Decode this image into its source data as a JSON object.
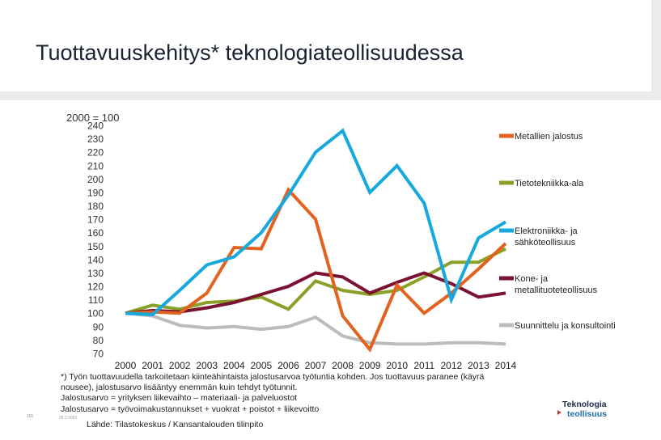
{
  "header": {
    "title": "Tuottavuuskehitys* teknologiateollisuudessa"
  },
  "chart_data": {
    "type": "line",
    "subtitle": "2000 = 100",
    "x": [
      "2000",
      "2001",
      "2002",
      "2003",
      "2004",
      "2005",
      "2006",
      "2007",
      "2008",
      "2009",
      "2010",
      "2011",
      "2012",
      "2013",
      "2014"
    ],
    "y_ticks": [
      70,
      80,
      90,
      100,
      110,
      120,
      130,
      140,
      150,
      160,
      170,
      180,
      190,
      200,
      210,
      220,
      230,
      240
    ],
    "ylim": [
      70,
      240
    ],
    "series": [
      {
        "name": "Metallien jalostus",
        "color": "#e2621f",
        "values": [
          100,
          101,
          100,
          115,
          149,
          148,
          192,
          170,
          98,
          73,
          121,
          100,
          115,
          133,
          152
        ]
      },
      {
        "name": "Tietotekniikka-ala",
        "color": "#8aa128",
        "values": [
          100,
          106,
          103,
          108,
          109,
          112,
          103,
          124,
          117,
          114,
          117,
          127,
          138,
          138,
          148
        ]
      },
      {
        "name": "Elektroniikka- ja sähköteollisuus",
        "color": "#17a9de",
        "values": [
          100,
          99,
          117,
          136,
          142,
          160,
          188,
          220,
          236,
          190,
          210,
          182,
          110,
          156,
          168
        ]
      },
      {
        "name": "Kone- ja metallituoteteollisuus",
        "color": "#7a1232",
        "values": [
          100,
          102,
          101,
          104,
          108,
          114,
          120,
          130,
          127,
          115,
          123,
          130,
          122,
          112,
          115
        ]
      },
      {
        "name": "Suunnittelu ja konsultointi",
        "color": "#bcbcbc",
        "values": [
          100,
          98,
          91,
          89,
          90,
          88,
          90,
          97,
          83,
          78,
          77,
          77,
          78,
          78,
          77
        ]
      }
    ]
  },
  "footnote": {
    "line1": "*) Työn tuottavuudella tarkoitetaan kiinteähintaista jalostusarvoa työtuntia kohden. Jos tuottavuus paranee (käyrä",
    "line2": "nousee), jalostusarvo lisääntyy enemmän kuin tehdyt työtunnit.",
    "line3": "Jalostusarvo = yrityksen liikevaihto – materiaali- ja palveluostot",
    "line4": "Jalostusarvo = työvoimakustannukset + vuokrat + poistot + liikevoitto"
  },
  "source": "Lähde: Tilastokeskus / Kansantalouden tilinpito",
  "page_number": "101",
  "date": "28.2.2021",
  "logo": {
    "line1": "Teknologia",
    "line2": "teollisuus"
  }
}
